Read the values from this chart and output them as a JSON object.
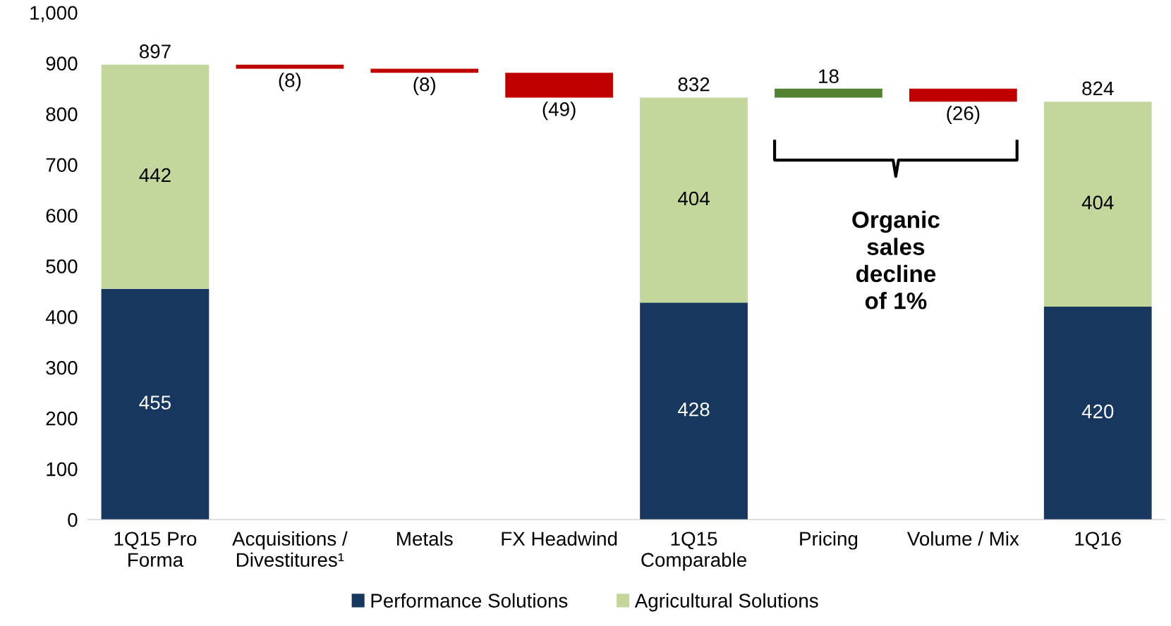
{
  "chart_data": {
    "type": "bar",
    "stacked": true,
    "data_labels": true,
    "legend": "bottom",
    "grid": false,
    "categories": [
      "1Q15 Pro\nForma",
      "Acquisitions /\nDivestitures¹",
      "Metals",
      "FX Headwind",
      "1Q15\nComparable",
      "Pricing",
      "Volume / Mix",
      "1Q16"
    ],
    "series": [
      {
        "name": "Performance Solutions",
        "color": "#17375e",
        "values": [
          455,
          null,
          null,
          null,
          428,
          null,
          null,
          420
        ]
      },
      {
        "name": "Agricultural Solutions",
        "color": "#c3d69b",
        "values": [
          442,
          null,
          null,
          null,
          404,
          null,
          null,
          404
        ]
      },
      {
        "colors": [
          null,
          "#c00000",
          "#c00000",
          "#c00000",
          null,
          "#548235",
          "#c00000",
          null
        ],
        "base": [
          null,
          897,
          889,
          881,
          null,
          832,
          850,
          null
        ],
        "values": [
          null,
          -8,
          -8,
          -49,
          null,
          18,
          -26,
          null
        ],
        "value_labels": [
          null,
          "(8)",
          "(8)",
          "(49)",
          null,
          "18",
          "(26)",
          null
        ]
      }
    ],
    "totals": [
      "897",
      null,
      null,
      null,
      "832",
      null,
      null,
      "824"
    ],
    "annotations": [
      "Organic\nsales\ndecline\nof 1%"
    ],
    "ylim": [
      0,
      1000
    ],
    "yticks": [
      0,
      100,
      200,
      300,
      400,
      500,
      600,
      700,
      800,
      900,
      {
        "value": 1000,
        "label": "1,000"
      }
    ]
  }
}
